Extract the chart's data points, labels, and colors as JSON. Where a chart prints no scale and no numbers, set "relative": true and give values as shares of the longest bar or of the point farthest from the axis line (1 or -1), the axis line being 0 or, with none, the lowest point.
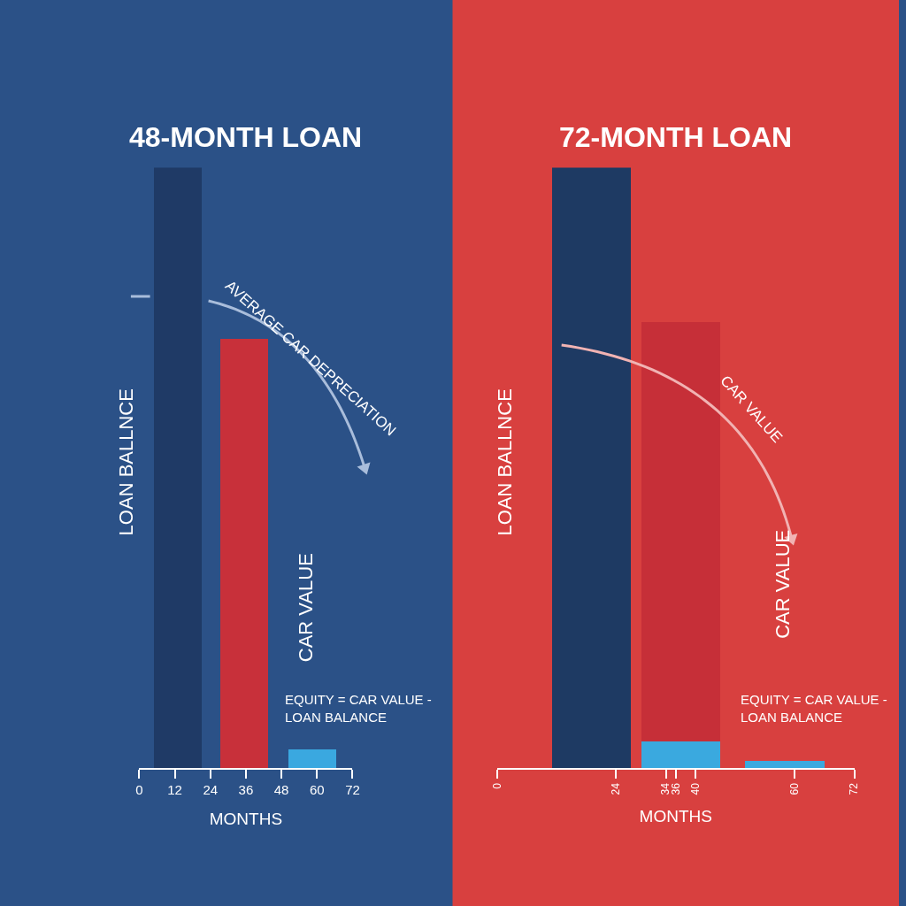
{
  "chart_data": [
    {
      "type": "bar",
      "title": "48-MONTH LOAN",
      "xlabel": "MONTHS",
      "relative": true,
      "stacked": true,
      "legend": false,
      "grid": false,
      "tick_labels": "x",
      "x": [
        13,
        35.5,
        58.5
      ],
      "xlim": [
        0,
        72
      ],
      "xticks": [
        0,
        12,
        24,
        36,
        48,
        60,
        72
      ],
      "series": [
        {
          "name": "LOAN BALLNCE",
          "color": "#1f3a66",
          "values": [
            1,
            null,
            null
          ]
        },
        {
          "color": "#3aa8e0",
          "values": [
            null,
            null,
            0.031
          ]
        },
        {
          "name": "CAR VALUE",
          "color": "#c8303a",
          "values": [
            null,
            0.715,
            null
          ]
        }
      ],
      "annotations": [
        "AVERAGE CAR DEPRECIATION",
        "EQUITY = CAR VALUE -\nLOAN BALANCE"
      ]
    },
    {
      "type": "bar",
      "title": "72-MONTH LOAN",
      "xlabel": "MONTHS",
      "relative": true,
      "stacked": true,
      "legend": false,
      "grid": false,
      "tick_labels": "x",
      "x": [
        19,
        37,
        58
      ],
      "xlim": [
        0,
        72
      ],
      "xticks": [
        0,
        24,
        34,
        36,
        40,
        60,
        72
      ],
      "series": [
        {
          "name": "LOAN BALLNCE",
          "color": "#1e3a63",
          "values": [
            1,
            null,
            null
          ]
        },
        {
          "color": "#3aa9df",
          "values": [
            null,
            0.044,
            0.012
          ]
        },
        {
          "name": "CAR VALUE",
          "color": "#c62f38",
          "values": [
            null,
            0.699,
            null
          ]
        }
      ],
      "annotations": [
        "CAR VALUE",
        "EQUITY = CAR VALUE -\nLOAN BALANCE"
      ]
    }
  ]
}
